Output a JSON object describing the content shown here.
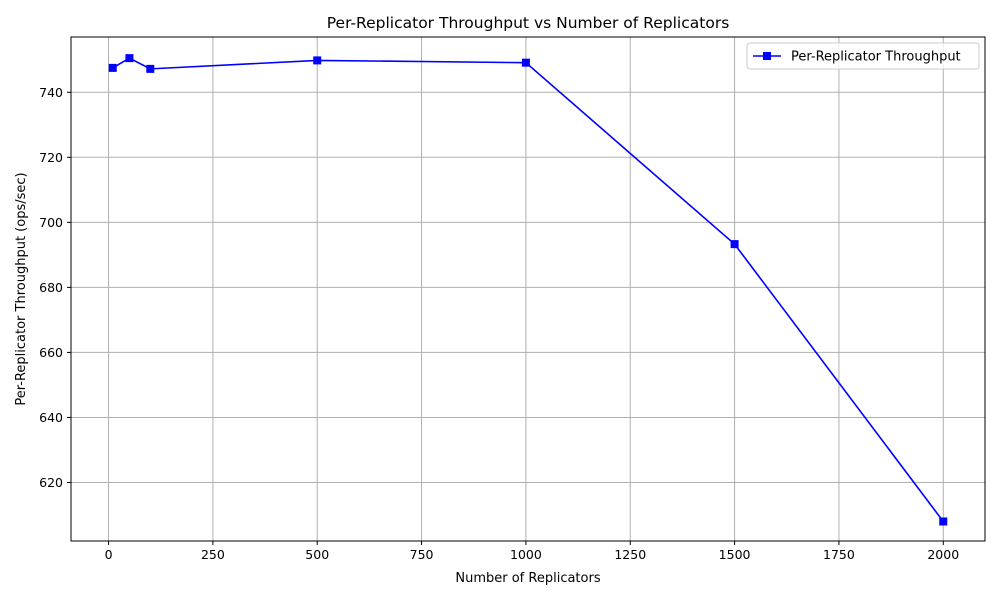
{
  "chart_data": {
    "type": "line",
    "title": "Per-Replicator Throughput vs Number of Replicators",
    "xlabel": "Number of Replicators",
    "ylabel": "Per-Replicator Throughput (ops/sec)",
    "xlim": [
      -90,
      2100
    ],
    "ylim": [
      602,
      757
    ],
    "xticks": [
      0,
      250,
      500,
      750,
      1000,
      1250,
      1500,
      1750,
      2000
    ],
    "xtick_labels": [
      "0",
      "250",
      "500",
      "750",
      "1000",
      "1250",
      "1500",
      "1750",
      "2000"
    ],
    "yticks": [
      620,
      640,
      660,
      680,
      700,
      720,
      740
    ],
    "ytick_labels": [
      "620",
      "640",
      "660",
      "680",
      "700",
      "720",
      "740"
    ],
    "grid": true,
    "legend_position": "top-right",
    "series": [
      {
        "name": "Per-Replicator Throughput",
        "color": "#0000ff",
        "marker": "square",
        "x": [
          10,
          50,
          100,
          500,
          1000,
          1500,
          2000
        ],
        "y": [
          747.5,
          750.5,
          747.2,
          749.8,
          749.1,
          693.3,
          608.0
        ]
      }
    ]
  }
}
